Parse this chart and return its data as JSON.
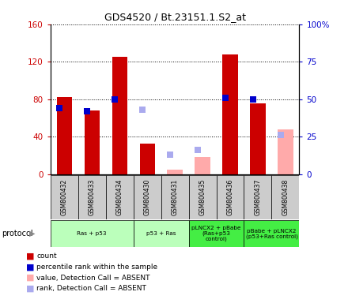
{
  "title": "GDS4520 / Bt.23151.1.S2_at",
  "samples": [
    "GSM800432",
    "GSM800433",
    "GSM800434",
    "GSM800430",
    "GSM800431",
    "GSM800435",
    "GSM800436",
    "GSM800437",
    "GSM800438"
  ],
  "count_values": [
    82,
    68,
    125,
    33,
    null,
    null,
    128,
    76,
    null
  ],
  "count_absent_values": [
    null,
    null,
    null,
    null,
    5,
    18,
    null,
    null,
    48
  ],
  "rank_present": [
    44,
    42,
    50,
    null,
    null,
    null,
    51,
    50,
    null
  ],
  "rank_absent": [
    null,
    null,
    null,
    43,
    13,
    16,
    null,
    null,
    26
  ],
  "ylim_left": [
    0,
    160
  ],
  "ylim_right": [
    0,
    100
  ],
  "yticks_left": [
    0,
    40,
    80,
    120,
    160
  ],
  "yticks_right": [
    0,
    25,
    50,
    75,
    100
  ],
  "yticklabels_left": [
    "0",
    "40",
    "80",
    "120",
    "160"
  ],
  "yticklabels_right": [
    "0",
    "25",
    "50",
    "75",
    "100%"
  ],
  "protocol_groups": [
    {
      "label": "Ras + p53",
      "start": 0,
      "end": 3,
      "color": "#bbffbb"
    },
    {
      "label": "p53 + Ras",
      "start": 3,
      "end": 5,
      "color": "#bbffbb"
    },
    {
      "label": "pLNCX2 + pBabe\n(Ras+p53\ncontrol)",
      "start": 5,
      "end": 7,
      "color": "#44ee44"
    },
    {
      "label": "pBabe + pLNCX2\n(p53+Ras control)",
      "start": 7,
      "end": 9,
      "color": "#44ee44"
    }
  ],
  "count_color": "#cc0000",
  "count_absent_color": "#ffaaaa",
  "rank_present_color": "#0000cc",
  "rank_absent_color": "#aaaaee",
  "legend_items": [
    {
      "color": "#cc0000",
      "label": "count"
    },
    {
      "color": "#0000cc",
      "label": "percentile rank within the sample"
    },
    {
      "color": "#ffaaaa",
      "label": "value, Detection Call = ABSENT"
    },
    {
      "color": "#aaaaee",
      "label": "rank, Detection Call = ABSENT"
    }
  ],
  "protocol_label": "protocol"
}
